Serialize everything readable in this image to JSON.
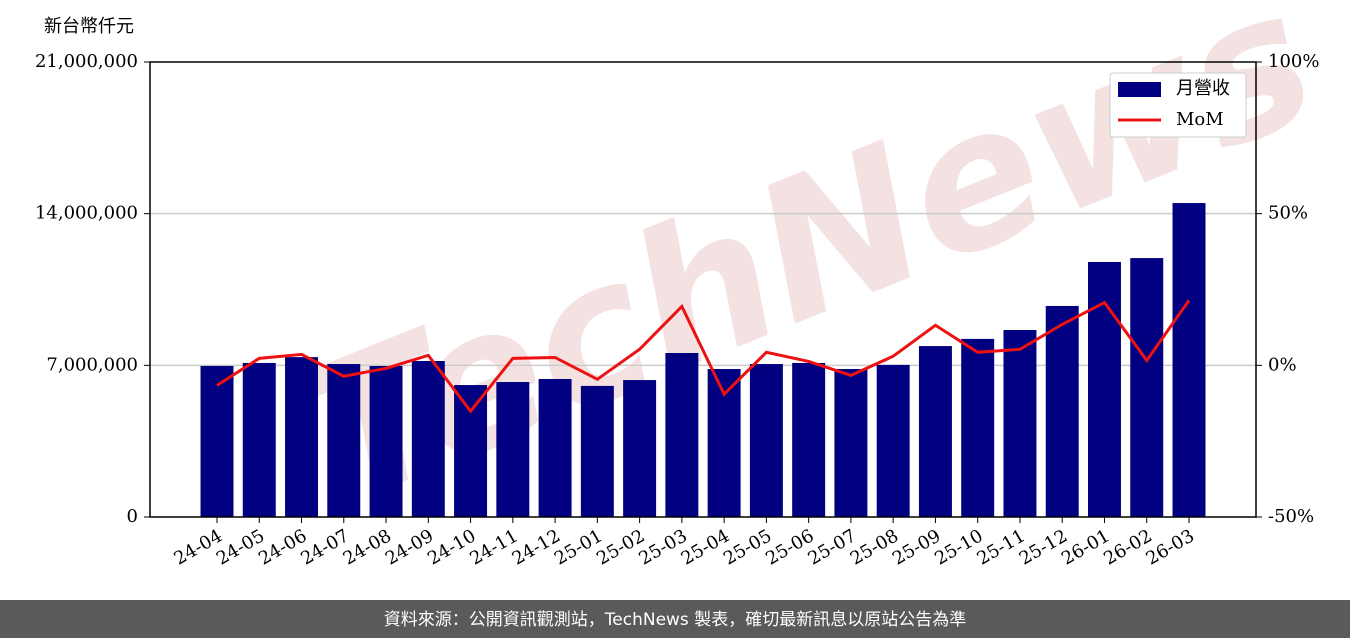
{
  "chart_data": {
    "type": "bar_line",
    "y_label": "新台幣仟元",
    "watermark": "TechNews",
    "categories": [
      "24-04",
      "24-05",
      "24-06",
      "24-07",
      "24-08",
      "24-09",
      "24-10",
      "24-11",
      "24-12",
      "25-01",
      "25-02",
      "25-03",
      "25-04",
      "25-05",
      "25-06",
      "25-07",
      "25-08",
      "25-09",
      "25-10",
      "25-11",
      "25-12",
      "26-01",
      "26-02",
      "26-03"
    ],
    "series": [
      {
        "name": "月營收",
        "type": "bar",
        "color": "#000080",
        "values": [
          6970000,
          7110000,
          7380000,
          7060000,
          6970000,
          7200000,
          6090000,
          6230000,
          6370000,
          6050000,
          6320000,
          7570000,
          6830000,
          7060000,
          7110000,
          6830000,
          7020000,
          7890000,
          8220000,
          8630000,
          9740000,
          11770000,
          11950000,
          14490000
        ]
      },
      {
        "name": "MoM",
        "type": "line",
        "axis": "y2",
        "color": "#ee1111",
        "values": [
          -6.6,
          2.3,
          3.6,
          -3.6,
          -1.0,
          3.3,
          -15.1,
          2.3,
          2.6,
          -4.6,
          5.3,
          19.4,
          -9.5,
          4.3,
          1.3,
          -3.3,
          3.0,
          13.2,
          4.3,
          5.3,
          13.5,
          20.7,
          1.6,
          21.4
        ]
      }
    ],
    "ylim": [
      0,
      21000000
    ],
    "yticks": [
      0,
      {
        "value": 7000000,
        "label": "7,000,000"
      },
      {
        "value": 14000000,
        "label": "14,000,000"
      },
      {
        "value": 21000000,
        "label": "21,000,000"
      }
    ],
    "y2lim": [
      -50,
      100
    ],
    "y2ticks": [
      {
        "value": -50,
        "label": "-50%"
      },
      {
        "value": 0,
        "label": "0%"
      },
      {
        "value": 50,
        "label": "50%"
      },
      {
        "value": 100,
        "label": "100%"
      }
    ],
    "grid": true,
    "legend": "upper right",
    "footer": "資料來源：公開資訊觀測站，TechNews 製表，確切最新訊息以原站公告為準"
  }
}
